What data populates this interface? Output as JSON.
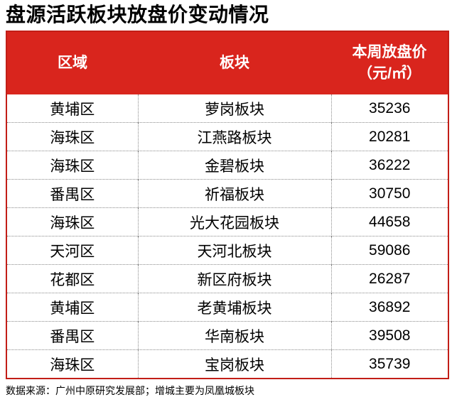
{
  "title": "盘源活跃板块放盘价变动情况",
  "table": {
    "columns": [
      {
        "label": "区域",
        "sublabel": ""
      },
      {
        "label": "板块",
        "sublabel": ""
      },
      {
        "label": "本周放盘价",
        "sublabel": "（元/㎡）"
      }
    ],
    "rows": [
      {
        "region": "黄埔区",
        "block": "萝岗板块",
        "price": "35236"
      },
      {
        "region": "海珠区",
        "block": "江燕路板块",
        "price": "20281"
      },
      {
        "region": "海珠区",
        "block": "金碧板块",
        "price": "36222"
      },
      {
        "region": "番禺区",
        "block": "祈福板块",
        "price": "30750"
      },
      {
        "region": "海珠区",
        "block": "光大花园板块",
        "price": "44658"
      },
      {
        "region": "天河区",
        "block": "天河北板块",
        "price": "59086"
      },
      {
        "region": "花都区",
        "block": "新区府板块",
        "price": "26287"
      },
      {
        "region": "黄埔区",
        "block": "老黄埔板块",
        "price": "36892"
      },
      {
        "region": "番禺区",
        "block": "华南板块",
        "price": "39508"
      },
      {
        "region": "海珠区",
        "block": "宝岗板块",
        "price": "35739"
      }
    ]
  },
  "footer": {
    "source": "数据来源：广州中原研究发展部；增城主要为凤凰城板块"
  },
  "colors": {
    "header_bg": "#d9251d",
    "outer_border": "#c21e17",
    "divider": "#8a8a8a",
    "header_text": "#ffffff",
    "body_text": "#000000"
  },
  "chart_data": {
    "type": "table",
    "title": "盘源活跃板块放盘价变动情况",
    "columns": [
      "区域",
      "板块",
      "本周放盘价（元/㎡）"
    ],
    "rows": [
      [
        "黄埔区",
        "萝岗板块",
        35236
      ],
      [
        "海珠区",
        "江燕路板块",
        20281
      ],
      [
        "海珠区",
        "金碧板块",
        36222
      ],
      [
        "番禺区",
        "祈福板块",
        30750
      ],
      [
        "海珠区",
        "光大花园板块",
        44658
      ],
      [
        "天河区",
        "天河北板块",
        59086
      ],
      [
        "花都区",
        "新区府板块",
        26287
      ],
      [
        "黄埔区",
        "老黄埔板块",
        36892
      ],
      [
        "番禺区",
        "华南板块",
        39508
      ],
      [
        "海珠区",
        "宝岗板块",
        35739
      ]
    ],
    "source_note": "数据来源：广州中原研究发展部；增城主要为凤凰城板块"
  }
}
